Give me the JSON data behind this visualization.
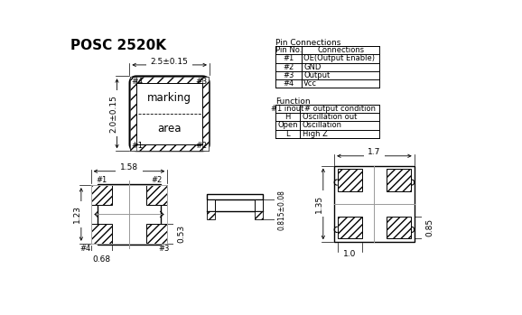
{
  "title": "POSC 2520K",
  "pin_connections_title": "Pin Connections",
  "pin_table_headers": [
    "Pin No.",
    "Connections"
  ],
  "pin_table_rows": [
    [
      "#1",
      "OE(Output Enable)"
    ],
    [
      "#2",
      "GND"
    ],
    [
      "#3",
      "Output"
    ],
    [
      "#4",
      "Vcc"
    ]
  ],
  "function_title": "Function",
  "function_table_headers": [
    "#1 inout",
    "# output condition"
  ],
  "function_table_rows": [
    [
      "H",
      "Oscillation out"
    ],
    [
      "Open",
      "Oscillation"
    ],
    [
      "L",
      "High Z"
    ]
  ],
  "top_dim_width": "2.5±0.15",
  "top_dim_height": "2.0±0.15",
  "bottom_dim_width": "1.58",
  "bottom_dim_side": "0.815±0.08",
  "bottom_dim_1": "1.23",
  "bottom_dim_2": "0.68",
  "bottom_dim_3": "0.53",
  "right_dim_width": "1.7",
  "right_dim_height": "1.35",
  "right_dim_pad": "0.85",
  "right_dim_bottom": "1.0",
  "bg_color": "#ffffff",
  "line_color": "#000000",
  "text_color": "#000000"
}
